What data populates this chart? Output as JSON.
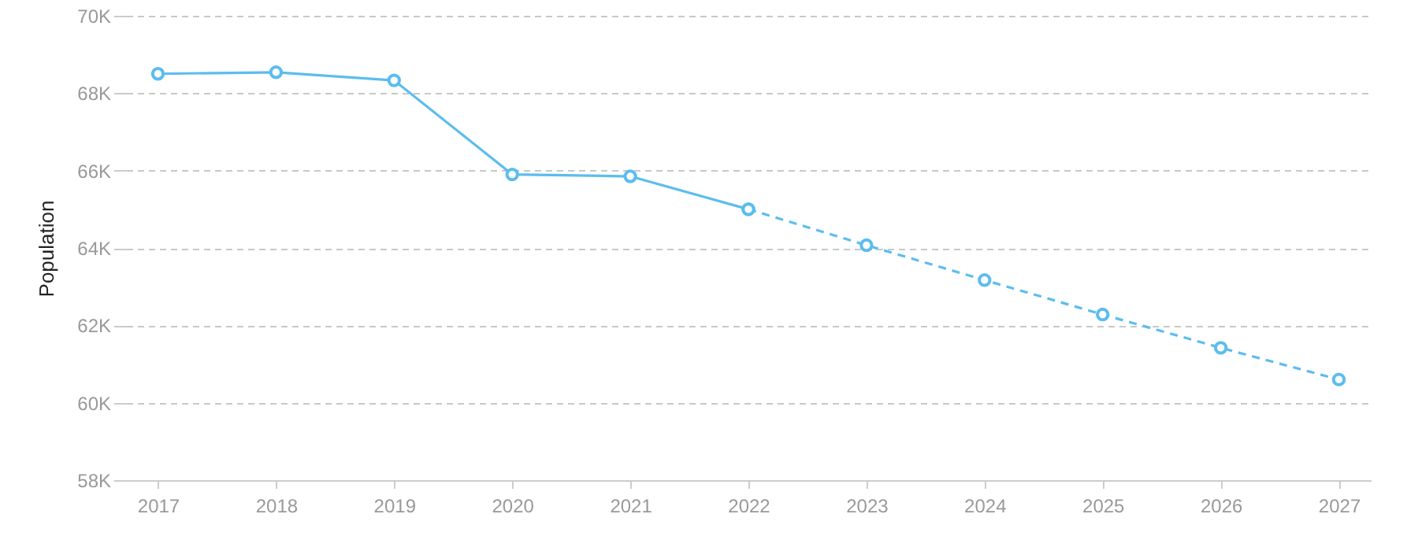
{
  "chart_data": {
    "type": "line",
    "ylabel": "Population",
    "categories": [
      "2017",
      "2018",
      "2019",
      "2020",
      "2021",
      "2022",
      "2023",
      "2024",
      "2025",
      "2026",
      "2027"
    ],
    "series": [
      {
        "color": "#5bbdee",
        "line_style": "solid",
        "values": [
          68500,
          68540,
          68330,
          65900,
          65850,
          65000,
          null,
          null,
          null,
          null,
          null
        ]
      },
      {
        "color": "#5bbdee",
        "line_style": "dashed",
        "values": [
          null,
          null,
          null,
          null,
          null,
          65000,
          64070,
          63170,
          62280,
          61420,
          60600
        ]
      }
    ],
    "ylim": [
      58000,
      70000
    ],
    "yticks": [
      {
        "value": 58000,
        "label": "58K"
      },
      {
        "value": 60000,
        "label": "60K"
      },
      {
        "value": 62000,
        "label": "62K"
      },
      {
        "value": 64000,
        "label": "64K"
      },
      {
        "value": 66000,
        "label": "66K"
      },
      {
        "value": 68000,
        "label": "68K"
      },
      {
        "value": 70000,
        "label": "70K"
      }
    ],
    "grid": "y",
    "marker": "circle"
  }
}
